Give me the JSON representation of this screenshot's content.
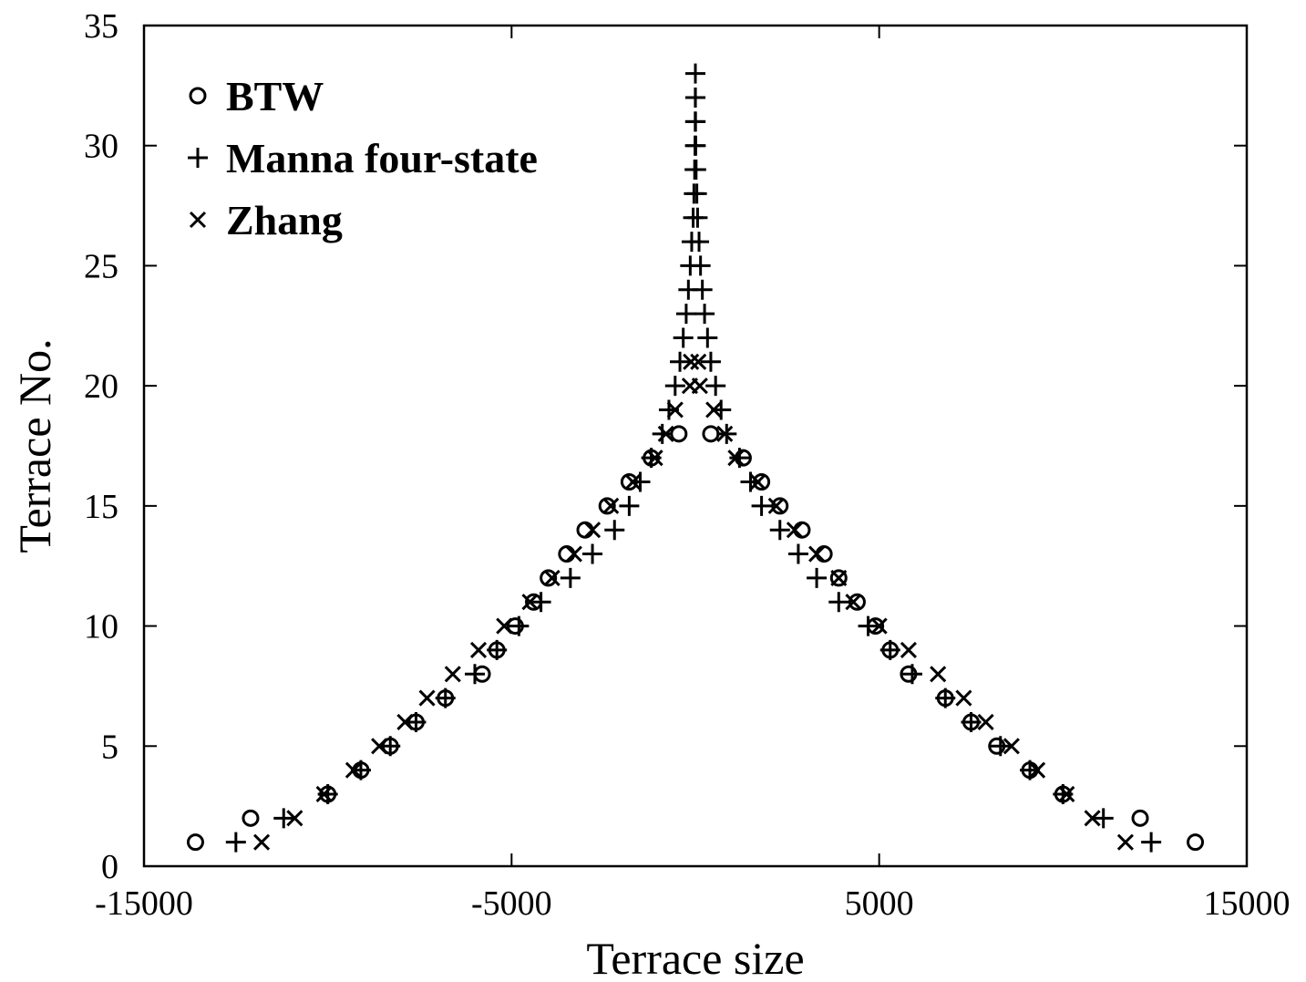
{
  "chart_data": {
    "type": "scatter",
    "xlabel": "Terrace size",
    "ylabel": "Terrace No.",
    "xlim": [
      -15000,
      15000
    ],
    "ylim": [
      0,
      35
    ],
    "xticks": [
      -15000,
      -5000,
      5000,
      15000
    ],
    "yticks": [
      0,
      5,
      10,
      15,
      20,
      25,
      30,
      35
    ],
    "grid": false,
    "legend_position": "top-left",
    "series": [
      {
        "name": "BTW",
        "marker": "circle",
        "points": [
          [
            -13600,
            1
          ],
          [
            13600,
            1
          ],
          [
            -12100,
            2
          ],
          [
            12100,
            2
          ],
          [
            -10000,
            3
          ],
          [
            10000,
            3
          ],
          [
            -9100,
            4
          ],
          [
            9100,
            4
          ],
          [
            -8300,
            5
          ],
          [
            8200,
            5
          ],
          [
            -7600,
            6
          ],
          [
            7500,
            6
          ],
          [
            -6800,
            7
          ],
          [
            6800,
            7
          ],
          [
            -5800,
            8
          ],
          [
            5800,
            8
          ],
          [
            -5400,
            9
          ],
          [
            5300,
            9
          ],
          [
            -4900,
            10
          ],
          [
            4900,
            10
          ],
          [
            -4400,
            11
          ],
          [
            4400,
            11
          ],
          [
            -4000,
            12
          ],
          [
            3900,
            12
          ],
          [
            -3500,
            13
          ],
          [
            3500,
            13
          ],
          [
            -3000,
            14
          ],
          [
            2900,
            14
          ],
          [
            -2400,
            15
          ],
          [
            2300,
            15
          ],
          [
            -1800,
            16
          ],
          [
            1800,
            16
          ],
          [
            -1200,
            17
          ],
          [
            1300,
            17
          ],
          [
            -450,
            18
          ],
          [
            420,
            18
          ]
        ]
      },
      {
        "name": "Manna four-state",
        "marker": "plus",
        "points": [
          [
            -12500,
            1
          ],
          [
            12400,
            1
          ],
          [
            -11200,
            2
          ],
          [
            11100,
            2
          ],
          [
            -10000,
            3
          ],
          [
            10000,
            3
          ],
          [
            -9100,
            4
          ],
          [
            9100,
            4
          ],
          [
            -8300,
            5
          ],
          [
            8300,
            5
          ],
          [
            -7600,
            6
          ],
          [
            7500,
            6
          ],
          [
            -6800,
            7
          ],
          [
            6800,
            7
          ],
          [
            -6000,
            8
          ],
          [
            5900,
            8
          ],
          [
            -5400,
            9
          ],
          [
            5300,
            9
          ],
          [
            -4800,
            10
          ],
          [
            4700,
            10
          ],
          [
            -4200,
            11
          ],
          [
            3900,
            11
          ],
          [
            -3400,
            12
          ],
          [
            3300,
            12
          ],
          [
            -2800,
            13
          ],
          [
            2800,
            13
          ],
          [
            -2200,
            14
          ],
          [
            2300,
            14
          ],
          [
            -1800,
            15
          ],
          [
            1800,
            15
          ],
          [
            -1500,
            16
          ],
          [
            1500,
            16
          ],
          [
            -1200,
            17
          ],
          [
            1200,
            17
          ],
          [
            -900,
            18
          ],
          [
            850,
            18
          ],
          [
            -720,
            19
          ],
          [
            700,
            19
          ],
          [
            -550,
            20
          ],
          [
            550,
            20
          ],
          [
            -420,
            21
          ],
          [
            420,
            21
          ],
          [
            -330,
            22
          ],
          [
            330,
            22
          ],
          [
            -250,
            23
          ],
          [
            250,
            23
          ],
          [
            -190,
            24
          ],
          [
            190,
            24
          ],
          [
            -140,
            25
          ],
          [
            140,
            25
          ],
          [
            -100,
            26
          ],
          [
            100,
            26
          ],
          [
            -60,
            27
          ],
          [
            60,
            27
          ],
          [
            -40,
            28
          ],
          [
            40,
            28
          ],
          [
            -20,
            29
          ],
          [
            20,
            29
          ],
          [
            -10,
            30
          ],
          [
            10,
            30
          ],
          [
            -5,
            31
          ],
          [
            5,
            31
          ],
          [
            -2,
            32
          ],
          [
            2,
            32
          ],
          [
            0,
            33
          ]
        ]
      },
      {
        "name": "Zhang",
        "marker": "cross",
        "points": [
          [
            -11800,
            1
          ],
          [
            11700,
            1
          ],
          [
            -10900,
            2
          ],
          [
            10800,
            2
          ],
          [
            -10100,
            3
          ],
          [
            10100,
            3
          ],
          [
            -9300,
            4
          ],
          [
            9300,
            4
          ],
          [
            -8600,
            5
          ],
          [
            8600,
            5
          ],
          [
            -7900,
            6
          ],
          [
            7900,
            6
          ],
          [
            -7300,
            7
          ],
          [
            7300,
            7
          ],
          [
            -6600,
            8
          ],
          [
            6600,
            8
          ],
          [
            -5900,
            9
          ],
          [
            5800,
            9
          ],
          [
            -5200,
            10
          ],
          [
            5000,
            10
          ],
          [
            -4500,
            11
          ],
          [
            4300,
            11
          ],
          [
            -3900,
            12
          ],
          [
            3900,
            12
          ],
          [
            -3300,
            13
          ],
          [
            3300,
            13
          ],
          [
            -2800,
            14
          ],
          [
            2700,
            14
          ],
          [
            -2300,
            15
          ],
          [
            2200,
            15
          ],
          [
            -1700,
            16
          ],
          [
            1700,
            16
          ],
          [
            -1100,
            17
          ],
          [
            1100,
            17
          ],
          [
            -800,
            18
          ],
          [
            800,
            18
          ],
          [
            -550,
            19
          ],
          [
            500,
            19
          ],
          [
            -150,
            20
          ],
          [
            120,
            20
          ],
          [
            -120,
            21
          ],
          [
            80,
            21
          ]
        ]
      }
    ]
  }
}
